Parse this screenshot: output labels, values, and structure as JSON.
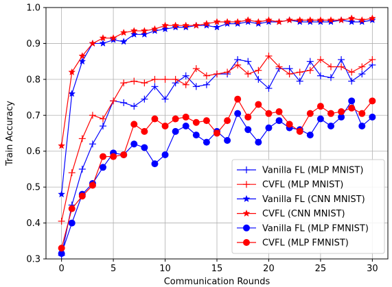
{
  "chart_data": {
    "type": "line",
    "title": "",
    "xlabel": "Communication Rounds",
    "ylabel": "Train Accuracy",
    "xlim": [
      -1.5,
      31.5
    ],
    "ylim": [
      0.3,
      1.0
    ],
    "xticks": [
      0,
      5,
      10,
      15,
      20,
      25,
      30
    ],
    "yticks": [
      0.3,
      0.4,
      0.5,
      0.6,
      0.7,
      0.8,
      0.9,
      1.0
    ],
    "grid": true,
    "legend_position": "lower-right",
    "x": [
      0,
      1,
      2,
      3,
      4,
      5,
      6,
      7,
      8,
      9,
      10,
      11,
      12,
      13,
      14,
      15,
      16,
      17,
      18,
      19,
      20,
      21,
      22,
      23,
      24,
      25,
      26,
      27,
      28,
      29,
      30
    ],
    "series": [
      {
        "name": "Vanilla FL (MLP MNIST)",
        "color": "#0000ff",
        "marker": "plus",
        "values": [
          0.31,
          0.45,
          0.55,
          0.62,
          0.67,
          0.74,
          0.735,
          0.725,
          0.745,
          0.78,
          0.745,
          0.79,
          0.81,
          0.78,
          0.785,
          0.815,
          0.815,
          0.855,
          0.85,
          0.8,
          0.775,
          0.83,
          0.83,
          0.795,
          0.85,
          0.81,
          0.805,
          0.855,
          0.795,
          0.815,
          0.84
        ]
      },
      {
        "name": "CVFL (MLP MNIST)",
        "color": "#ff0000",
        "marker": "plus",
        "values": [
          0.405,
          0.54,
          0.635,
          0.7,
          0.69,
          0.74,
          0.79,
          0.795,
          0.79,
          0.8,
          0.8,
          0.8,
          0.785,
          0.83,
          0.81,
          0.815,
          0.82,
          0.84,
          0.815,
          0.825,
          0.865,
          0.835,
          0.815,
          0.82,
          0.825,
          0.855,
          0.835,
          0.835,
          0.82,
          0.835,
          0.855
        ]
      },
      {
        "name": "Vanilla FL (CNN MNIST)",
        "color": "#0000ff",
        "marker": "star",
        "values": [
          0.48,
          0.76,
          0.85,
          0.9,
          0.9,
          0.91,
          0.905,
          0.925,
          0.925,
          0.935,
          0.94,
          0.945,
          0.945,
          0.95,
          0.95,
          0.945,
          0.955,
          0.955,
          0.96,
          0.955,
          0.96,
          0.96,
          0.965,
          0.96,
          0.96,
          0.96,
          0.96,
          0.965,
          0.96,
          0.96,
          0.965
        ]
      },
      {
        "name": "CVFL (CNN MNIST)",
        "color": "#ff0000",
        "marker": "star",
        "values": [
          0.615,
          0.82,
          0.865,
          0.9,
          0.915,
          0.915,
          0.93,
          0.935,
          0.935,
          0.94,
          0.95,
          0.95,
          0.95,
          0.95,
          0.955,
          0.96,
          0.96,
          0.96,
          0.965,
          0.96,
          0.965,
          0.96,
          0.965,
          0.965,
          0.965,
          0.965,
          0.965,
          0.965,
          0.97,
          0.965,
          0.97
        ]
      },
      {
        "name": "Vanilla FL (MLP FMNIST)",
        "color": "#0000ff",
        "marker": "circle",
        "values": [
          0.315,
          0.4,
          0.48,
          0.51,
          0.555,
          0.595,
          0.59,
          0.62,
          0.61,
          0.565,
          0.59,
          0.655,
          0.67,
          0.645,
          0.625,
          0.655,
          0.63,
          0.705,
          0.66,
          0.625,
          0.665,
          0.685,
          0.665,
          0.66,
          0.645,
          0.69,
          0.67,
          0.695,
          0.74,
          0.67,
          0.695
        ]
      },
      {
        "name": "CVFL (MLP FMNIST)",
        "color": "#ff0000",
        "marker": "circle",
        "values": [
          0.33,
          0.44,
          0.475,
          0.505,
          0.585,
          0.585,
          0.59,
          0.675,
          0.655,
          0.69,
          0.67,
          0.69,
          0.695,
          0.68,
          0.685,
          0.65,
          0.685,
          0.745,
          0.695,
          0.73,
          0.705,
          0.71,
          0.675,
          0.655,
          0.705,
          0.725,
          0.705,
          0.71,
          0.72,
          0.705,
          0.74
        ]
      }
    ]
  }
}
